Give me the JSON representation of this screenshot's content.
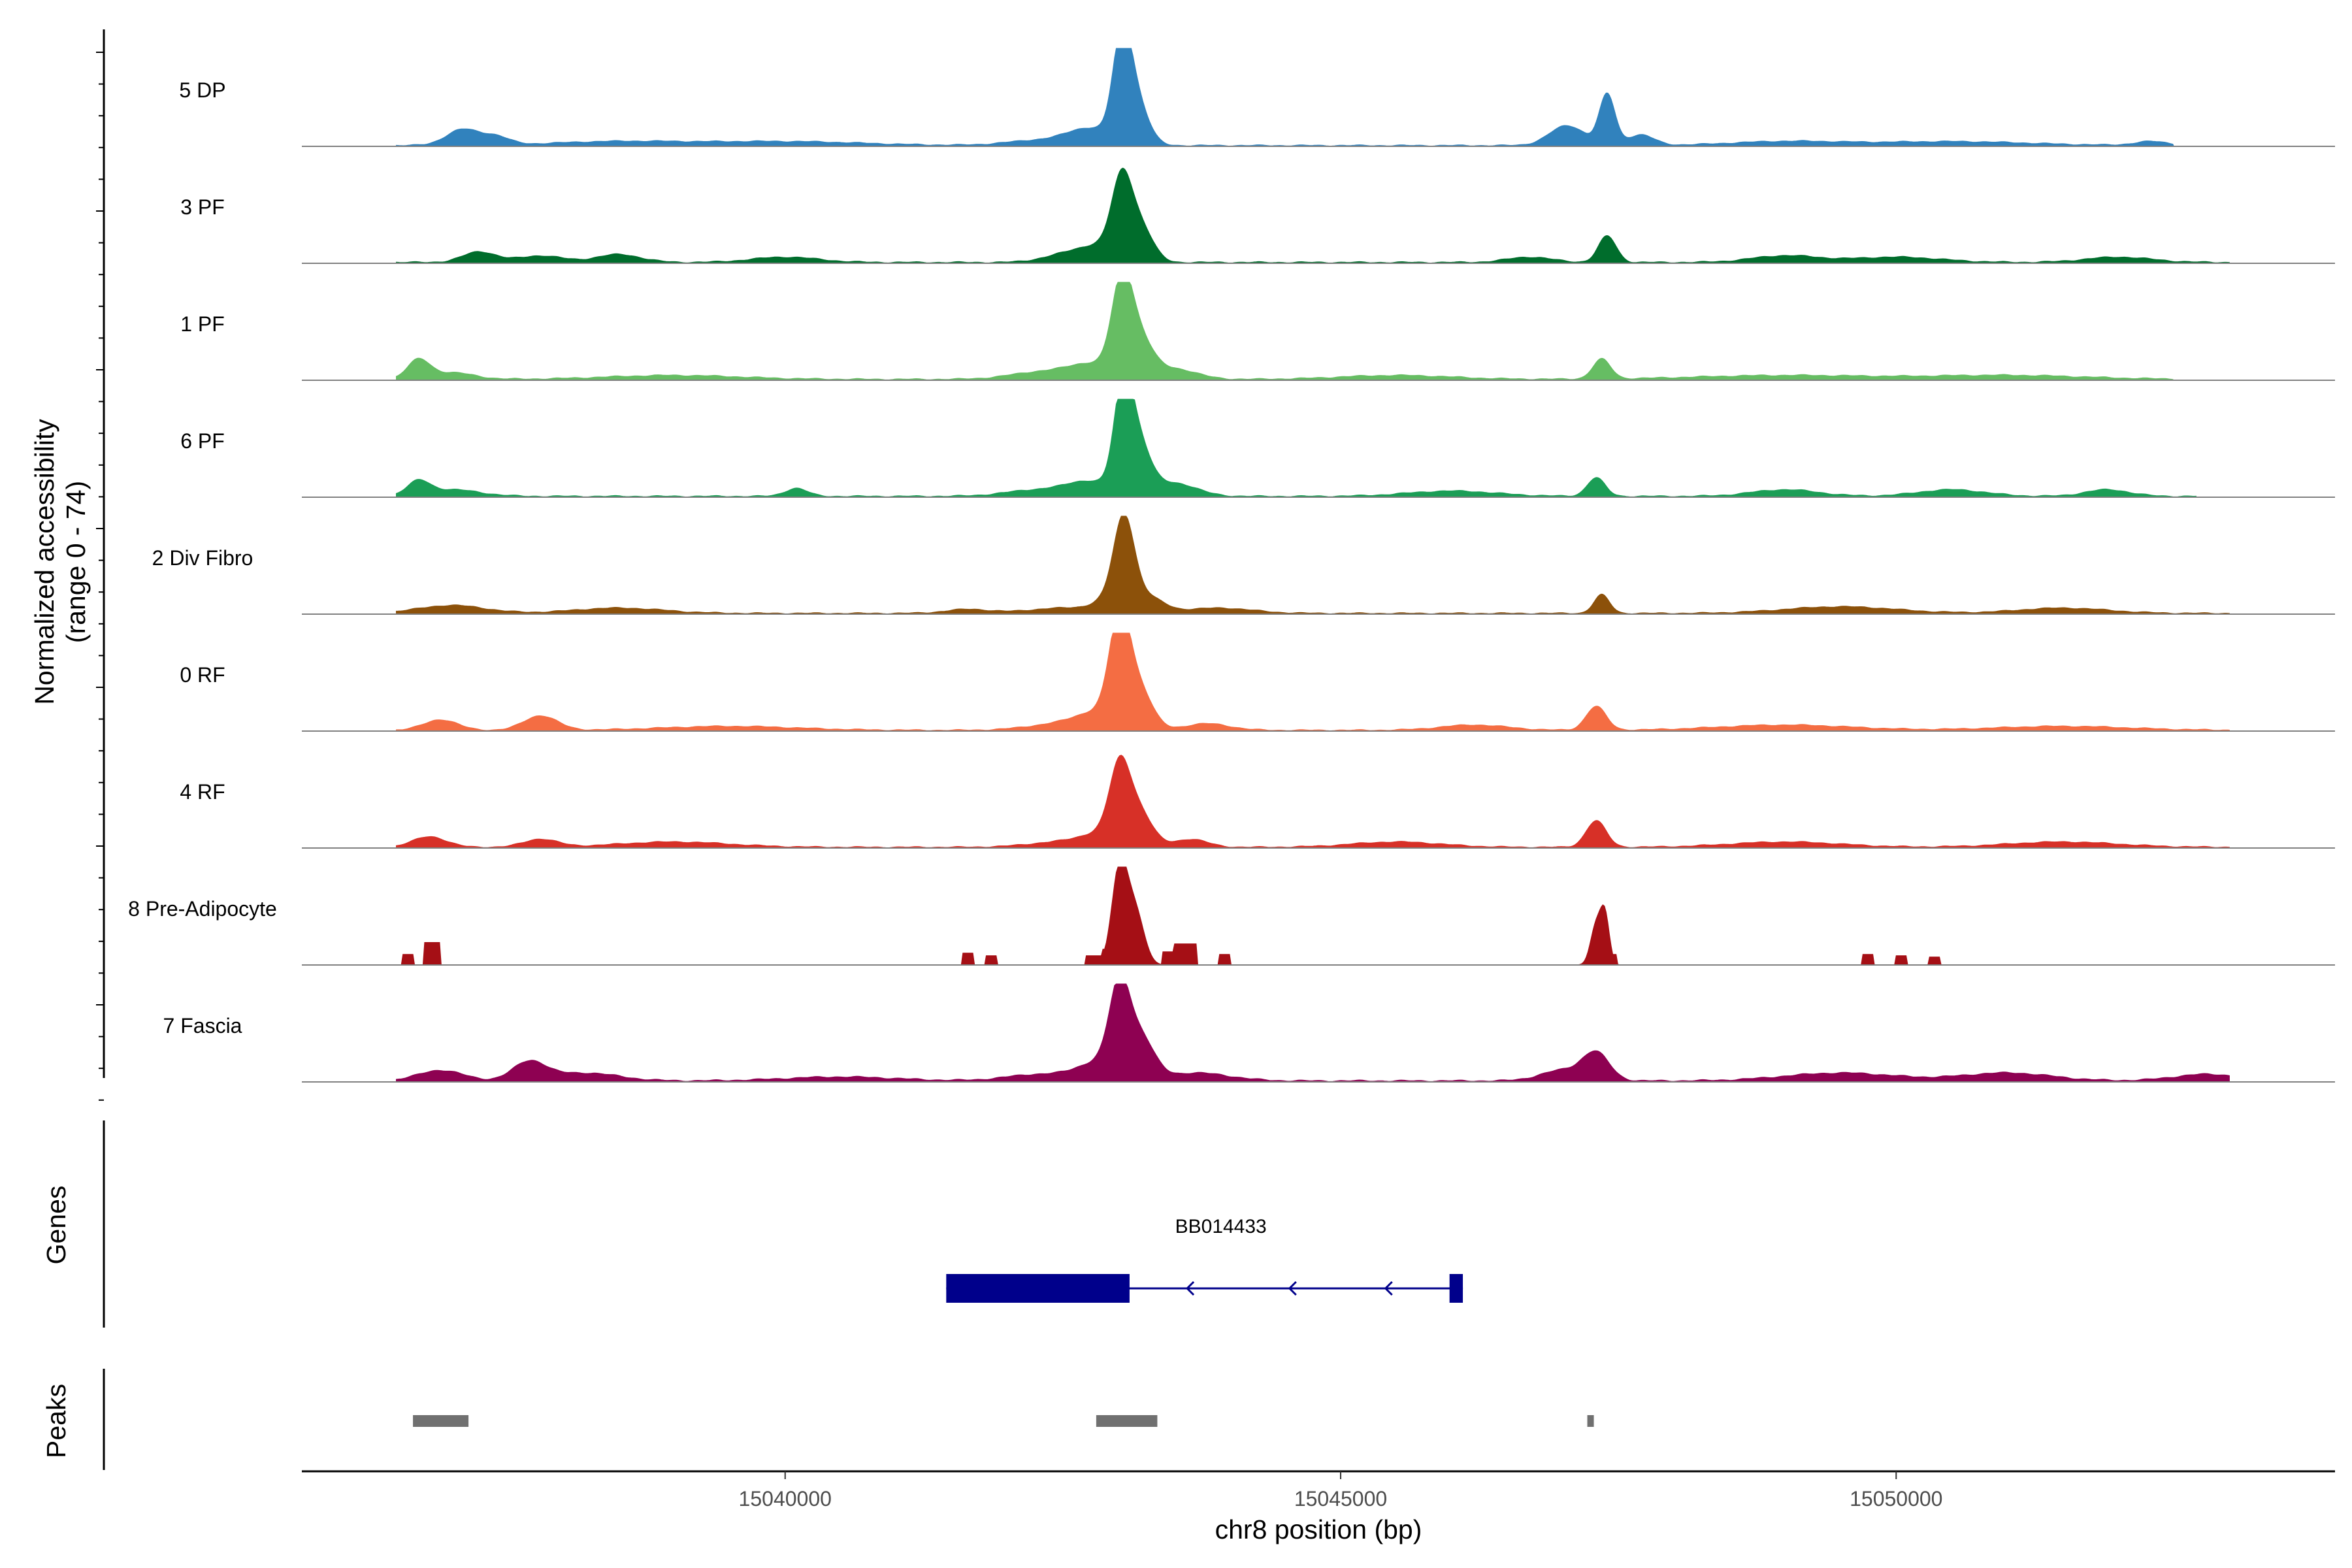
{
  "chart_data": {
    "type": "area",
    "title": "",
    "ylabel_line1": "Normalized accessibility",
    "ylabel_line2": "(range 0 - 74)",
    "xlabel": "chr8 position (bp)",
    "xlim": [
      15035650,
      15053950
    ],
    "ylim": [
      0,
      74
    ],
    "x_ticks": [
      15040000,
      15045000,
      15050000
    ],
    "x_tick_labels": [
      "15040000",
      "15045000",
      "15050000"
    ],
    "tracks": [
      {
        "name": "5 DP",
        "color": "#3182bd",
        "peaks": [
          [
            15037100,
            12,
            150
          ],
          [
            15037400,
            6,
            120
          ],
          [
            15038500,
            3,
            600
          ],
          [
            15040000,
            3,
            700
          ],
          [
            15042300,
            4,
            300
          ],
          [
            15042750,
            12,
            200
          ],
          [
            15043030,
            70,
            80
          ],
          [
            15043150,
            35,
            110
          ],
          [
            15047040,
            15,
            160
          ],
          [
            15047400,
            38,
            70
          ],
          [
            15047700,
            8,
            120
          ],
          [
            15049000,
            3,
            500
          ],
          [
            15050500,
            3,
            700
          ],
          [
            15052300,
            3,
            150
          ]
        ],
        "baseline": 1.2,
        "start": 15036500,
        "end": 15052500
      },
      {
        "name": "3 PF",
        "color": "#006d2c",
        "peaks": [
          [
            15037250,
            8,
            150
          ],
          [
            15037800,
            5,
            200
          ],
          [
            15038500,
            6,
            200
          ],
          [
            15040000,
            4,
            300
          ],
          [
            15042500,
            5,
            200
          ],
          [
            15042850,
            12,
            200
          ],
          [
            15043030,
            55,
            90
          ],
          [
            15043200,
            25,
            110
          ],
          [
            15046700,
            4,
            200
          ],
          [
            15047400,
            20,
            80
          ],
          [
            15049000,
            5,
            300
          ],
          [
            15050000,
            4,
            400
          ],
          [
            15052000,
            4,
            300
          ]
        ],
        "baseline": 1.3,
        "start": 15036500,
        "end": 15053000
      },
      {
        "name": "1 PF",
        "color": "#66bd63",
        "peaks": [
          [
            15036700,
            14,
            100
          ],
          [
            15037000,
            5,
            200
          ],
          [
            15039000,
            3,
            600
          ],
          [
            15042350,
            6,
            300
          ],
          [
            15042780,
            10,
            200
          ],
          [
            15043030,
            65,
            90
          ],
          [
            15043180,
            30,
            120
          ],
          [
            15043500,
            8,
            200
          ],
          [
            15045500,
            3,
            500
          ],
          [
            15047350,
            15,
            80
          ],
          [
            15049000,
            3,
            800
          ],
          [
            15051000,
            3,
            700
          ]
        ],
        "baseline": 1.3,
        "start": 15036500,
        "end": 15052500
      },
      {
        "name": "6 PF",
        "color": "#1b9e56",
        "peaks": [
          [
            15036700,
            10,
            100
          ],
          [
            15037000,
            5,
            250
          ],
          [
            15040100,
            6,
            100
          ],
          [
            15042300,
            5,
            300
          ],
          [
            15042750,
            10,
            200
          ],
          [
            15043040,
            72,
            80
          ],
          [
            15043170,
            40,
            110
          ],
          [
            15043500,
            10,
            200
          ],
          [
            15046000,
            4,
            400
          ],
          [
            15047300,
            14,
            80
          ],
          [
            15049000,
            5,
            300
          ],
          [
            15050500,
            5,
            300
          ],
          [
            15051900,
            5,
            200
          ]
        ],
        "baseline": 1.3,
        "start": 15036500,
        "end": 15052700
      },
      {
        "name": "2 Div Fibro",
        "color": "#8c510a",
        "peaks": [
          [
            15037000,
            6,
            300
          ],
          [
            15038500,
            4,
            400
          ],
          [
            15041650,
            3,
            200
          ],
          [
            15042500,
            4,
            300
          ],
          [
            15042950,
            10,
            150
          ],
          [
            15043050,
            62,
            90
          ],
          [
            15043250,
            12,
            150
          ],
          [
            15043900,
            4,
            300
          ],
          [
            15047350,
            14,
            70
          ],
          [
            15049500,
            5,
            500
          ],
          [
            15051500,
            4,
            400
          ]
        ],
        "baseline": 1.2,
        "start": 15036500,
        "end": 15053000
      },
      {
        "name": "0 RF",
        "color": "#f46d43",
        "peaks": [
          [
            15036900,
            8,
            150
          ],
          [
            15037800,
            11,
            150
          ],
          [
            15039500,
            3,
            600
          ],
          [
            15042500,
            5,
            300
          ],
          [
            15042850,
            12,
            200
          ],
          [
            15043010,
            74,
            90
          ],
          [
            15043180,
            30,
            120
          ],
          [
            15043800,
            5,
            200
          ],
          [
            15046200,
            4,
            300
          ],
          [
            15047300,
            18,
            90
          ],
          [
            15049000,
            4,
            600
          ],
          [
            15051500,
            3,
            600
          ]
        ],
        "baseline": 1.2,
        "start": 15036500,
        "end": 15053000
      },
      {
        "name": "4 RF",
        "color": "#d73027",
        "peaks": [
          [
            15036800,
            8,
            150
          ],
          [
            15037800,
            6,
            150
          ],
          [
            15039000,
            4,
            500
          ],
          [
            15042500,
            4,
            300
          ],
          [
            15042900,
            10,
            200
          ],
          [
            15043010,
            50,
            90
          ],
          [
            15043180,
            25,
            120
          ],
          [
            15043650,
            6,
            150
          ],
          [
            15045500,
            4,
            400
          ],
          [
            15047300,
            20,
            90
          ],
          [
            15049000,
            4,
            500
          ],
          [
            15051500,
            4,
            500
          ]
        ],
        "baseline": 1.2,
        "start": 15036500,
        "end": 15053000
      },
      {
        "name": "8 Pre-Adipocyte",
        "color": "#a50f15",
        "blocks": [
          [
            15036550,
            15036650,
            8
          ],
          [
            15036750,
            15036900,
            17
          ],
          [
            15041600,
            15041700,
            9
          ],
          [
            15041800,
            15041900,
            7
          ],
          [
            15042700,
            15042850,
            7
          ],
          [
            15042850,
            15042950,
            12
          ],
          [
            15043400,
            15043500,
            10
          ],
          [
            15043500,
            15043700,
            16
          ],
          [
            15043900,
            15044000,
            8
          ],
          [
            15047250,
            15047350,
            12
          ],
          [
            15047420,
            15047480,
            8
          ],
          [
            15049700,
            15049800,
            8
          ],
          [
            15050000,
            15050100,
            7
          ],
          [
            15050300,
            15050400,
            6
          ]
        ],
        "peaks": [
          [
            15043010,
            72,
            70
          ],
          [
            15043150,
            40,
            80
          ],
          [
            15047300,
            30,
            50
          ],
          [
            15047380,
            35,
            40
          ]
        ],
        "baseline": 0,
        "start": 15036500,
        "end": 15053000
      },
      {
        "name": "7 Fascia",
        "color": "#8e0152",
        "peaks": [
          [
            15036900,
            8,
            200
          ],
          [
            15037700,
            14,
            150
          ],
          [
            15038200,
            6,
            300
          ],
          [
            15040500,
            3,
            500
          ],
          [
            15042300,
            5,
            300
          ],
          [
            15042850,
            14,
            200
          ],
          [
            15043010,
            62,
            90
          ],
          [
            15043200,
            30,
            120
          ],
          [
            15043700,
            6,
            300
          ],
          [
            15047300,
            20,
            120
          ],
          [
            15047000,
            8,
            200
          ],
          [
            15049500,
            6,
            500
          ],
          [
            15051000,
            6,
            400
          ],
          [
            15052800,
            5,
            300
          ]
        ],
        "baseline": 1.5,
        "start": 15036500,
        "end": 15053000
      }
    ],
    "gene_track": {
      "label": "Genes",
      "gene_name": "BB014433",
      "strand": "-",
      "color": "#00008b",
      "start": 15041450,
      "end": 15046100,
      "exons": [
        [
          15041450,
          15043100
        ],
        [
          15045980,
          15046100
        ]
      ]
    },
    "peak_track": {
      "label": "Peaks",
      "color": "#707070",
      "peaks": [
        [
          15036650,
          15037150
        ],
        [
          15042800,
          15043350
        ],
        [
          15047220,
          15047270
        ]
      ]
    }
  }
}
